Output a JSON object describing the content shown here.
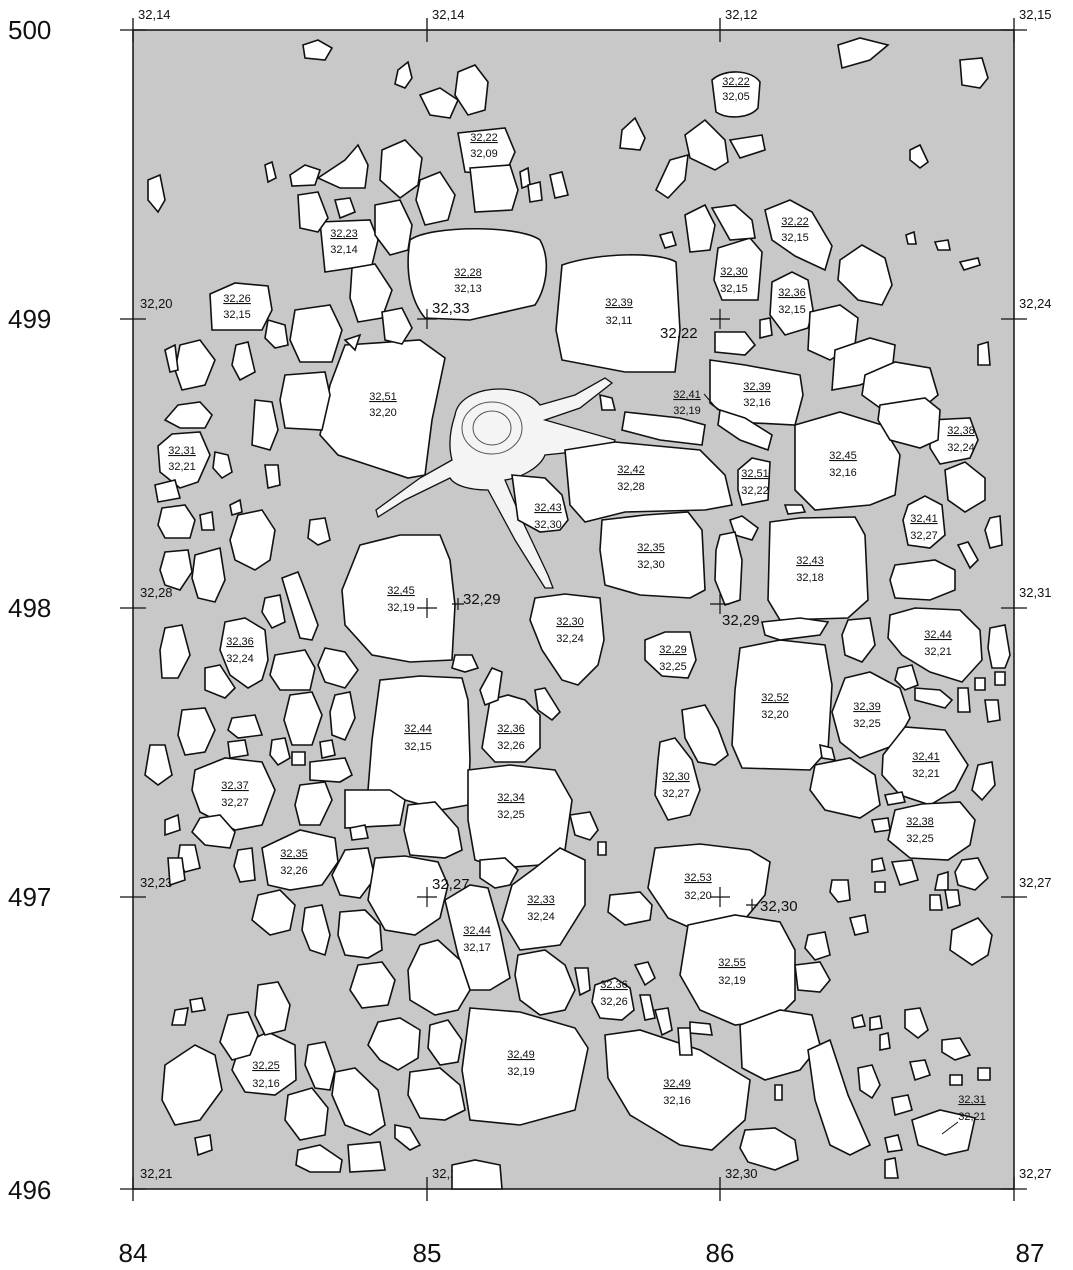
{
  "plan": {
    "background": "#c8c8c8",
    "stone_fill": "#ffffff",
    "stroke": "#111111",
    "y_axis": [
      "500",
      "499",
      "498",
      "497",
      "496"
    ],
    "x_axis": [
      "84",
      "85",
      "86",
      "87"
    ]
  },
  "grid_elevations": {
    "r500": [
      "32,14",
      "32,14",
      "32,12",
      "32,15"
    ],
    "r499": [
      "32,20",
      "32,24"
    ],
    "r498": [
      "32,28",
      "32,31"
    ],
    "r497": [
      "32,23",
      "32,27"
    ],
    "r496": [
      "32,21",
      "32,21",
      "32,30",
      "32,27"
    ]
  },
  "spot_heights": [
    "32,33",
    "32,22",
    "32,29",
    "32,29",
    "32,27",
    "32,30"
  ],
  "stones": [
    {
      "top": "32,22",
      "bottom": "32,05"
    },
    {
      "top": "32,22",
      "bottom": "32,09"
    },
    {
      "top": "32,23",
      "bottom": "32,14"
    },
    {
      "top": "32,28",
      "bottom": "32,13"
    },
    {
      "top": "32,22",
      "bottom": "32,15"
    },
    {
      "top": "32,26",
      "bottom": "32,15"
    },
    {
      "top": "32,39",
      "bottom": "32,11"
    },
    {
      "top": "32,30",
      "bottom": "32,15"
    },
    {
      "top": "32,36",
      "bottom": "32,15"
    },
    {
      "top": "32,51",
      "bottom": "32,20"
    },
    {
      "top": "32,41",
      "bottom": "32,19"
    },
    {
      "top": "32,39",
      "bottom": "32,16"
    },
    {
      "top": "32,38",
      "bottom": "32,24"
    },
    {
      "top": "32,31",
      "bottom": "32,21"
    },
    {
      "top": "32,42",
      "bottom": "32,28"
    },
    {
      "top": "32,45",
      "bottom": "32,16"
    },
    {
      "top": "32,51",
      "bottom": "32,22"
    },
    {
      "top": "32,43",
      "bottom": "32,30"
    },
    {
      "top": "32,41",
      "bottom": "32,27"
    },
    {
      "top": "32,35",
      "bottom": "32,30"
    },
    {
      "top": "32,43",
      "bottom": "32,18"
    },
    {
      "top": "32,45",
      "bottom": "32,19"
    },
    {
      "top": "32,30",
      "bottom": "32,24"
    },
    {
      "top": "32,36",
      "bottom": "32,24"
    },
    {
      "top": "32,44",
      "bottom": "32,21"
    },
    {
      "top": "32,29",
      "bottom": "32,25"
    },
    {
      "top": "32,52",
      "bottom": "32,20"
    },
    {
      "top": "32,39",
      "bottom": "32,25"
    },
    {
      "top": "32,44",
      "bottom": "32,15"
    },
    {
      "top": "32,36",
      "bottom": "32,26"
    },
    {
      "top": "32,41",
      "bottom": "32,21"
    },
    {
      "top": "32,37",
      "bottom": "32,27"
    },
    {
      "top": "32,30",
      "bottom": "32,27"
    },
    {
      "top": "32,34",
      "bottom": "32,25"
    },
    {
      "top": "32,38",
      "bottom": "32,25"
    },
    {
      "top": "32,35",
      "bottom": "32,26"
    },
    {
      "top": "32,53",
      "bottom": "32,20"
    },
    {
      "top": "32,33",
      "bottom": "32,24"
    },
    {
      "top": "32,44",
      "bottom": "32,17"
    },
    {
      "top": "32,55",
      "bottom": "32,19"
    },
    {
      "top": "32,36",
      "bottom": "32,26"
    },
    {
      "top": "32,25",
      "bottom": "32,16"
    },
    {
      "top": "32,49",
      "bottom": "32,19"
    },
    {
      "top": "32,49",
      "bottom": "32,16"
    },
    {
      "top": "32,31",
      "bottom": "32,21"
    }
  ]
}
